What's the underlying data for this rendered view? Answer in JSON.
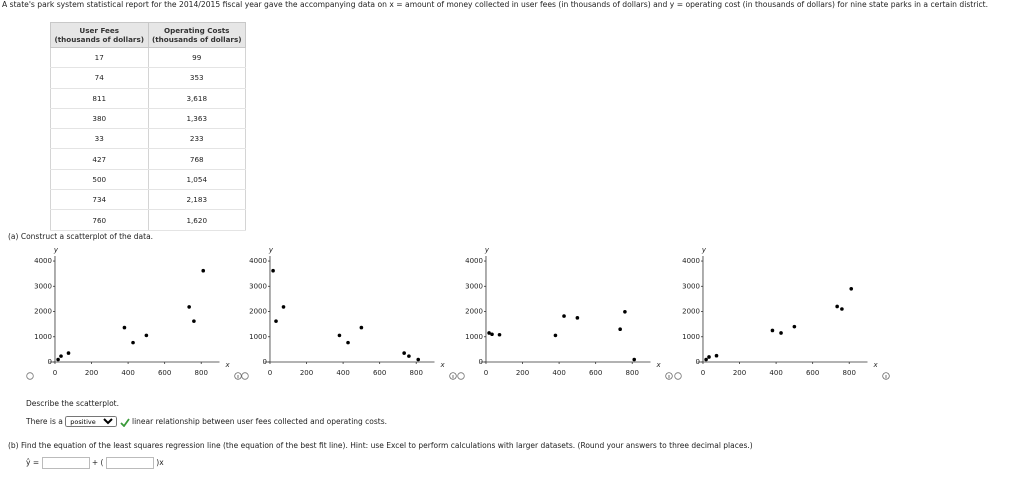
{
  "intro": "A state's park system statistical report for the 2014/2015 fiscal year gave the accompanying data on x = amount of money collected in user fees (in thousands of dollars) and y = operating cost (in thousands of dollars) for nine state parks in a certain district.",
  "table": {
    "header": [
      "User Fees\n(thousands of dollars)",
      "Operating Costs\n(thousands of dollars)"
    ],
    "rows": [
      [
        "17",
        "99"
      ],
      [
        "74",
        "353"
      ],
      [
        "811",
        "3,618"
      ],
      [
        "380",
        "1,363"
      ],
      [
        "33",
        "233"
      ],
      [
        "427",
        "768"
      ],
      [
        "500",
        "1,054"
      ],
      [
        "734",
        "2,183"
      ],
      [
        "760",
        "1,620"
      ]
    ]
  },
  "part_a": {
    "prompt": "(a)  Construct a scatterplot of the data.",
    "describe": "Describe the scatterplot.",
    "sentence_start": "There is a",
    "selected": "positive",
    "sentence_end": "linear relationship between user fees collected and operating costs."
  },
  "part_b": {
    "prompt": "(b)  Find the equation of the least squares regression line (the equation of the best fit line). Hint: use Excel to perform calculations with larger datasets. (Round your answers to three decimal places.)",
    "lhs": "ŷ =",
    "plus": "+ (",
    "tail": ")x"
  },
  "chart_data": [
    {
      "type": "scatter",
      "xlabel": "x",
      "ylabel": "y",
      "color": "#000000",
      "x": [
        17,
        74,
        811,
        380,
        33,
        427,
        500,
        734,
        760
      ],
      "y": [
        99,
        353,
        3618,
        1363,
        233,
        768,
        1054,
        2183,
        1620
      ],
      "xlim": [
        -30,
        900
      ],
      "ylim": [
        0,
        4200
      ],
      "xticks": [
        0,
        200,
        400,
        600,
        800
      ],
      "yticks": [
        0,
        1000,
        2000,
        3000,
        4000
      ]
    },
    {
      "type": "scatter",
      "xlabel": "x",
      "ylabel": "y",
      "color": "#000000",
      "x": [
        17,
        74,
        33,
        380,
        427,
        500,
        734,
        760,
        811
      ],
      "y": [
        3618,
        2183,
        1620,
        1054,
        768,
        1363,
        353,
        233,
        99
      ],
      "xlim": [
        -30,
        900
      ],
      "ylim": [
        0,
        4200
      ],
      "xticks": [
        0,
        200,
        400,
        600,
        800
      ],
      "yticks": [
        0,
        1000,
        2000,
        3000,
        4000
      ]
    },
    {
      "type": "scatter",
      "xlabel": "x",
      "ylabel": "y",
      "color": "#000000",
      "x": [
        17,
        33,
        74,
        380,
        427,
        500,
        734,
        760,
        811
      ],
      "y": [
        1150,
        1100,
        1080,
        1054,
        1820,
        1750,
        1300,
        1990,
        99
      ],
      "xlim": [
        -30,
        900
      ],
      "ylim": [
        0,
        4200
      ],
      "xticks": [
        0,
        200,
        400,
        600,
        800
      ],
      "yticks": [
        0,
        1000,
        2000,
        3000,
        4000
      ]
    },
    {
      "type": "scatter",
      "xlabel": "x",
      "ylabel": "y",
      "color": "#000000",
      "x": [
        17,
        33,
        74,
        380,
        427,
        500,
        734,
        760,
        811
      ],
      "y": [
        99,
        200,
        250,
        1250,
        1150,
        1400,
        2200,
        2100,
        2900
      ],
      "xlim": [
        -30,
        900
      ],
      "ylim": [
        0,
        4200
      ],
      "xticks": [
        0,
        200,
        400,
        600,
        800
      ],
      "yticks": [
        0,
        1000,
        2000,
        3000,
        4000
      ]
    }
  ]
}
